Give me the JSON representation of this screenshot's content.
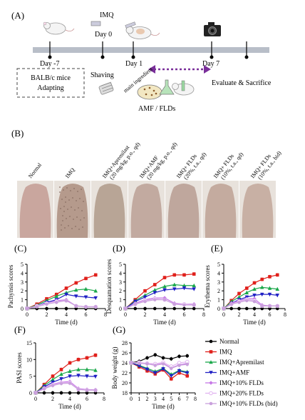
{
  "panels": {
    "a": "(A)",
    "b": "(B)",
    "c": "(C)",
    "d": "(D)",
    "e": "(E)",
    "f": "(F)",
    "g": "(G)"
  },
  "timeline": {
    "day_minus7": "Day -7",
    "day0": "Day 0",
    "day1": "Day 1",
    "day7": "Day 7",
    "imq": "IMQ",
    "balbc_line1": "BALB/c mice",
    "balbc_line2": "Adapting",
    "shaving": "Shaving",
    "main_ingredient": "main ingredient",
    "amf_flds": "AMF / FLDs",
    "evaluate": "Evaluate  & Sacrifice"
  },
  "photo_groups": [
    {
      "line1": "Normal",
      "line2": ""
    },
    {
      "line1": "IMQ",
      "line2": ""
    },
    {
      "line1": "IMQ+Apremilast",
      "line2": "(20 mg/kg, p.o., qd)"
    },
    {
      "line1": "IMQ+AMF",
      "line2": "(20 mg/kg, p.o., qd)"
    },
    {
      "line1": "IMQ+ FLDs",
      "line2": "(20%, t.a., qd)"
    },
    {
      "line1": "IMQ+ FLDs",
      "line2": "(10%, t.a., qd)"
    },
    {
      "line1": "IMQ+ FLDs",
      "line2": "(10%, t.a., bid)"
    }
  ],
  "legend": {
    "entries": [
      "Normal",
      "IMQ",
      "IMQ+Apremilast",
      "IMQ+AMF",
      "IMQ+10% FLDs",
      "IMQ+20% FLDs",
      "IMQ+10% FLDs (bid)"
    ],
    "colors": [
      "#000000",
      "#e0201b",
      "#1aa84a",
      "#1f1fc4",
      "#c678e6",
      "#e2b4f0",
      "#c9a0dc"
    ],
    "markers": [
      "circle",
      "square",
      "triangle",
      "triangle-down",
      "diamond",
      "circle-open",
      "circle"
    ]
  },
  "chart_data": [
    {
      "id": "C",
      "type": "line",
      "xlabel": "Time (d)",
      "ylabel": "Pachynsis scores",
      "xlim": [
        0,
        8
      ],
      "ylim": [
        0,
        5
      ],
      "xticks": [
        0,
        2,
        4,
        6,
        8
      ],
      "yticks": [
        0,
        1,
        2,
        3,
        4,
        5
      ],
      "x": [
        0,
        1,
        2,
        3,
        4,
        5,
        6,
        7
      ],
      "series": [
        {
          "values": [
            0,
            0,
            0,
            0,
            0,
            0,
            0,
            0
          ]
        },
        {
          "values": [
            0,
            0.5,
            1.1,
            1.6,
            2.3,
            2.9,
            3.4,
            3.8
          ]
        },
        {
          "values": [
            0,
            0.4,
            0.9,
            1.4,
            1.8,
            2.1,
            2.2,
            2.0
          ]
        },
        {
          "values": [
            0,
            0.3,
            0.7,
            1.0,
            1.6,
            1.4,
            1.3,
            1.2
          ]
        },
        {
          "values": [
            0,
            0.3,
            0.6,
            0.9,
            1.0,
            0.3,
            0.2,
            0.2
          ]
        },
        {
          "values": [
            0,
            0.3,
            0.6,
            0.8,
            0.9,
            0.3,
            0.2,
            0.2
          ]
        },
        {
          "values": [
            0,
            0.2,
            0.5,
            0.7,
            0.9,
            0.3,
            0.2,
            0.2
          ]
        }
      ]
    },
    {
      "id": "D",
      "type": "line",
      "xlabel": "Time (d)",
      "ylabel": "Desquamation scores",
      "xlim": [
        0,
        8
      ],
      "ylim": [
        0,
        5
      ],
      "xticks": [
        0,
        2,
        4,
        6,
        8
      ],
      "yticks": [
        0,
        1,
        2,
        3,
        4,
        5
      ],
      "x": [
        0,
        1,
        2,
        3,
        4,
        5,
        6,
        7
      ],
      "series": [
        {
          "values": [
            0,
            0,
            0,
            0,
            0,
            0,
            0,
            0
          ]
        },
        {
          "values": [
            0,
            1.0,
            2.0,
            2.7,
            3.5,
            3.8,
            3.8,
            3.9
          ]
        },
        {
          "values": [
            0,
            0.9,
            1.5,
            2.1,
            2.5,
            2.7,
            2.6,
            2.6
          ]
        },
        {
          "values": [
            0,
            0.8,
            1.3,
            1.8,
            2.1,
            2.2,
            2.3,
            2.2
          ]
        },
        {
          "values": [
            0,
            0.6,
            1.0,
            1.2,
            1.2,
            0.6,
            0.5,
            0.5
          ]
        },
        {
          "values": [
            0,
            0.5,
            0.9,
            1.1,
            1.0,
            0.5,
            0.5,
            0.4
          ]
        },
        {
          "values": [
            0,
            0.5,
            0.8,
            1.0,
            1.0,
            0.5,
            0.4,
            0.4
          ]
        }
      ]
    },
    {
      "id": "E",
      "type": "line",
      "xlabel": "Time (d)",
      "ylabel": "Erythema scores",
      "xlim": [
        0,
        8
      ],
      "ylim": [
        0,
        5
      ],
      "xticks": [
        0,
        2,
        4,
        6,
        8
      ],
      "yticks": [
        0,
        1,
        2,
        3,
        4,
        5
      ],
      "x": [
        0,
        1,
        2,
        3,
        4,
        5,
        6,
        7
      ],
      "series": [
        {
          "values": [
            0,
            0,
            0,
            0,
            0,
            0,
            0,
            0
          ]
        },
        {
          "values": [
            0,
            0.9,
            1.7,
            2.3,
            2.9,
            3.3,
            3.6,
            3.8
          ]
        },
        {
          "values": [
            0,
            0.8,
            1.3,
            1.8,
            2.2,
            2.4,
            2.3,
            2.2
          ]
        },
        {
          "values": [
            0,
            0.6,
            1.0,
            1.3,
            1.5,
            1.6,
            1.6,
            1.5
          ]
        },
        {
          "values": [
            0,
            0.6,
            0.9,
            1.1,
            1.1,
            0.4,
            0.3,
            0.3
          ]
        },
        {
          "values": [
            0,
            0.5,
            0.8,
            1.0,
            0.9,
            0.3,
            0.3,
            0.3
          ]
        },
        {
          "values": [
            0,
            0.5,
            0.7,
            0.9,
            0.8,
            0.3,
            0.3,
            0.3
          ]
        }
      ]
    },
    {
      "id": "F",
      "type": "line",
      "xlabel": "Time (d)",
      "ylabel": "PASI scores",
      "xlim": [
        0,
        8
      ],
      "ylim": [
        0,
        15
      ],
      "xticks": [
        0,
        2,
        4,
        6,
        8
      ],
      "yticks": [
        0,
        5,
        10,
        15
      ],
      "x": [
        0,
        1,
        2,
        3,
        4,
        5,
        6,
        7
      ],
      "series": [
        {
          "values": [
            0,
            0,
            0,
            0,
            0,
            0,
            0,
            0
          ]
        },
        {
          "values": [
            0,
            2.5,
            5.0,
            7.0,
            9.0,
            10.0,
            10.5,
            11.3
          ]
        },
        {
          "values": [
            0,
            2.2,
            4.0,
            5.6,
            6.5,
            7.0,
            7.0,
            6.8
          ]
        },
        {
          "values": [
            0,
            1.8,
            3.2,
            4.2,
            5.0,
            5.2,
            5.0,
            4.9
          ]
        },
        {
          "values": [
            0,
            1.5,
            2.6,
            3.2,
            3.4,
            1.3,
            1.0,
            0.9
          ]
        },
        {
          "values": [
            0,
            1.3,
            2.4,
            3.0,
            3.1,
            1.1,
            0.9,
            0.8
          ]
        },
        {
          "values": [
            0,
            1.2,
            2.2,
            2.8,
            2.9,
            1.0,
            0.8,
            0.8
          ]
        }
      ]
    },
    {
      "id": "G",
      "type": "line",
      "xlabel": "Time (d)",
      "ylabel": "Body weight (g)",
      "xlim": [
        0,
        8
      ],
      "ylim": [
        18,
        28
      ],
      "xticks": [
        0,
        1,
        2,
        3,
        4,
        5,
        6,
        7,
        8
      ],
      "yticks": [
        18,
        20,
        22,
        24,
        26,
        28
      ],
      "x": [
        0,
        1,
        2,
        3,
        4,
        5,
        6,
        7
      ],
      "series": [
        {
          "values": [
            24.0,
            24.3,
            25.0,
            25.6,
            25.0,
            24.8,
            25.3,
            25.4
          ]
        },
        {
          "values": [
            24.0,
            23.2,
            22.4,
            21.8,
            22.6,
            20.8,
            22.0,
            21.4
          ]
        },
        {
          "values": [
            24.0,
            23.5,
            22.9,
            22.3,
            22.9,
            21.7,
            22.5,
            22.2
          ]
        },
        {
          "values": [
            24.0,
            23.4,
            22.7,
            22.0,
            22.8,
            21.4,
            22.4,
            22.0
          ]
        },
        {
          "values": [
            24.0,
            24.0,
            23.8,
            23.6,
            23.9,
            23.0,
            23.6,
            23.9
          ]
        },
        {
          "values": [
            24.0,
            24.1,
            23.9,
            23.8,
            24.1,
            23.3,
            24.0,
            24.2
          ]
        },
        {
          "values": [
            24.0,
            23.9,
            23.8,
            23.5,
            23.8,
            22.9,
            23.5,
            23.7
          ]
        }
      ]
    }
  ]
}
